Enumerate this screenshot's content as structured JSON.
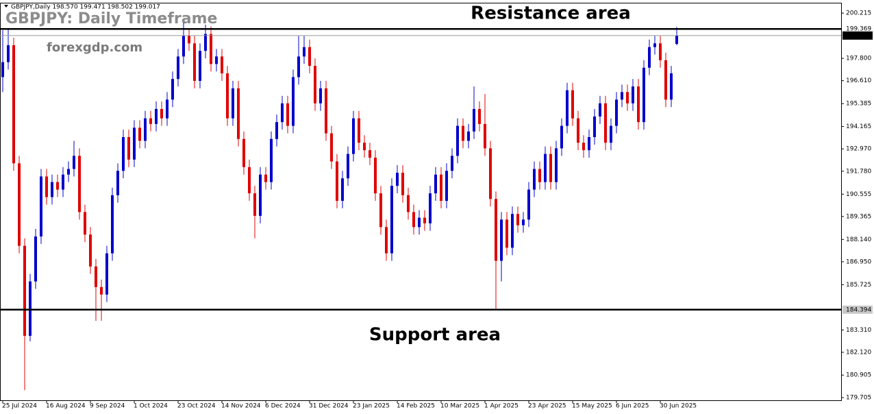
{
  "chart_data": {
    "type": "candlestick",
    "header": "GBPJPY,Daily  198.570 199.471 198.502 199.017",
    "title": "GBPJPY: Daily Timeframe",
    "subtitle": "forexgdp.com",
    "annotations": [
      "Resistance area",
      "Support area"
    ],
    "up_color": "#0000cc",
    "down_color": "#e00000",
    "ylim": [
      179.56,
      200.73
    ],
    "yticks": [
      200.215,
      {
        "value": 197.8,
        "label": "197.800"
      },
      {
        "value": 196.61,
        "label": "196.610"
      },
      195.385,
      194.165,
      {
        "value": 192.97,
        "label": "192.970"
      },
      {
        "value": 191.78,
        "label": "191.780"
      },
      190.555,
      189.365,
      {
        "value": 188.14,
        "label": "188.140"
      },
      {
        "value": 186.95,
        "label": "186.950"
      },
      185.725,
      {
        "value": 183.31,
        "label": "183.310"
      },
      {
        "value": 182.12,
        "label": "182.120"
      },
      180.905,
      179.705
    ],
    "levels": [
      199.369,
      199.017,
      184.394
    ],
    "xticks": [
      {
        "value": 0,
        "label": "25 Jul 2024"
      },
      {
        "value": 8,
        "label": "16 Aug 2024"
      },
      {
        "value": 16,
        "label": "9 Sep 2024"
      },
      {
        "value": 24,
        "label": "1 Oct 2024"
      },
      {
        "value": 32,
        "label": "23 Oct 2024"
      },
      {
        "value": 40,
        "label": "14 Nov 2024"
      },
      {
        "value": 48,
        "label": "6 Dec 2024"
      },
      {
        "value": 56,
        "label": "31 Dec 2024"
      },
      {
        "value": 64,
        "label": "23 Jan 2025"
      },
      {
        "value": 72,
        "label": "14 Feb 2025"
      },
      {
        "value": 80,
        "label": "10 Mar 2025"
      },
      {
        "value": 88,
        "label": "1 Apr 2025"
      },
      {
        "value": 96,
        "label": "23 Apr 2025"
      },
      {
        "value": 104,
        "label": "15 May 2025"
      },
      {
        "value": 112,
        "label": "6 Jun 2025"
      },
      {
        "value": 120,
        "label": "30 Jun 2025"
      }
    ],
    "candles": [
      [
        196.8,
        199.3,
        196.0,
        197.6
      ],
      [
        197.6,
        199.4,
        197.2,
        198.5
      ],
      [
        198.5,
        198.9,
        191.8,
        192.2
      ],
      [
        192.2,
        192.6,
        187.4,
        187.8
      ],
      [
        187.8,
        188.2,
        180.1,
        183.0
      ],
      [
        183.0,
        186.3,
        182.7,
        185.9
      ],
      [
        185.9,
        188.7,
        185.5,
        188.3
      ],
      [
        188.3,
        191.9,
        187.9,
        191.5
      ],
      [
        191.5,
        191.9,
        190.0,
        190.4
      ],
      [
        190.4,
        191.6,
        190.0,
        191.2
      ],
      [
        191.2,
        191.6,
        190.4,
        190.8
      ],
      [
        190.8,
        192.0,
        190.4,
        191.6
      ],
      [
        191.6,
        192.3,
        191.2,
        191.9
      ],
      [
        191.9,
        193.4,
        191.5,
        192.6
      ],
      [
        192.6,
        193.0,
        189.2,
        189.6
      ],
      [
        189.6,
        190.0,
        188.0,
        188.4
      ],
      [
        188.4,
        188.8,
        186.3,
        186.7
      ],
      [
        186.7,
        187.1,
        183.8,
        185.6
      ],
      [
        185.6,
        186.0,
        183.8,
        185.2
      ],
      [
        185.2,
        187.8,
        184.8,
        187.4
      ],
      [
        187.4,
        190.9,
        187.0,
        190.5
      ],
      [
        190.5,
        192.2,
        190.1,
        191.8
      ],
      [
        191.8,
        194.0,
        191.4,
        193.6
      ],
      [
        193.6,
        194.0,
        192.0,
        192.4
      ],
      [
        192.4,
        194.5,
        192.0,
        194.1
      ],
      [
        194.1,
        194.5,
        193.0,
        193.4
      ],
      [
        193.4,
        195.0,
        193.0,
        194.6
      ],
      [
        194.6,
        195.0,
        193.9,
        194.3
      ],
      [
        194.3,
        195.5,
        193.9,
        195.1
      ],
      [
        195.1,
        195.5,
        194.2,
        194.6
      ],
      [
        194.6,
        196.0,
        194.2,
        195.6
      ],
      [
        195.6,
        197.1,
        195.2,
        196.7
      ],
      [
        196.7,
        198.3,
        196.3,
        197.9
      ],
      [
        197.9,
        199.7,
        197.5,
        199.0
      ],
      [
        199.0,
        199.4,
        198.2,
        198.6
      ],
      [
        198.6,
        199.0,
        196.2,
        196.6
      ],
      [
        196.6,
        198.6,
        196.2,
        198.2
      ],
      [
        198.2,
        199.6,
        197.8,
        199.1
      ],
      [
        199.1,
        199.5,
        197.1,
        197.5
      ],
      [
        197.5,
        198.3,
        197.1,
        197.9
      ],
      [
        197.9,
        198.3,
        196.6,
        197.0
      ],
      [
        197.0,
        197.4,
        194.2,
        194.6
      ],
      [
        194.6,
        196.6,
        194.2,
        196.2
      ],
      [
        196.2,
        196.6,
        193.1,
        193.5
      ],
      [
        193.5,
        193.9,
        191.6,
        192.0
      ],
      [
        192.0,
        192.4,
        190.2,
        190.6
      ],
      [
        190.6,
        191.0,
        188.2,
        189.4
      ],
      [
        189.4,
        192.0,
        189.0,
        191.6
      ],
      [
        191.6,
        192.0,
        190.8,
        191.2
      ],
      [
        191.2,
        193.9,
        190.8,
        193.5
      ],
      [
        193.5,
        194.8,
        193.1,
        194.4
      ],
      [
        194.4,
        195.8,
        194.0,
        195.4
      ],
      [
        195.4,
        195.8,
        193.8,
        194.2
      ],
      [
        194.2,
        197.2,
        193.8,
        196.8
      ],
      [
        196.8,
        199.0,
        196.4,
        197.9
      ],
      [
        197.9,
        199.0,
        197.5,
        198.4
      ],
      [
        198.4,
        198.8,
        197.0,
        197.4
      ],
      [
        197.4,
        197.8,
        195.0,
        195.4
      ],
      [
        195.4,
        196.6,
        195.0,
        196.2
      ],
      [
        196.2,
        196.6,
        193.4,
        193.8
      ],
      [
        193.8,
        194.2,
        191.9,
        192.3
      ],
      [
        192.3,
        192.7,
        189.8,
        190.2
      ],
      [
        190.2,
        191.8,
        189.8,
        191.4
      ],
      [
        191.4,
        193.1,
        191.0,
        192.7
      ],
      [
        192.7,
        195.0,
        192.3,
        194.6
      ],
      [
        194.6,
        195.0,
        192.9,
        193.3
      ],
      [
        193.3,
        193.7,
        192.5,
        192.9
      ],
      [
        192.9,
        193.3,
        192.1,
        192.5
      ],
      [
        192.5,
        192.9,
        190.2,
        190.6
      ],
      [
        190.6,
        191.0,
        188.4,
        188.8
      ],
      [
        188.8,
        189.2,
        187.0,
        187.4
      ],
      [
        187.4,
        191.4,
        187.0,
        191.0
      ],
      [
        191.0,
        192.1,
        190.6,
        191.7
      ],
      [
        191.7,
        192.1,
        190.1,
        190.5
      ],
      [
        190.5,
        190.9,
        189.2,
        189.6
      ],
      [
        189.6,
        190.0,
        188.4,
        188.8
      ],
      [
        188.8,
        189.7,
        188.4,
        189.3
      ],
      [
        189.3,
        189.7,
        188.6,
        189.0
      ],
      [
        189.0,
        191.0,
        188.6,
        190.6
      ],
      [
        190.6,
        192.0,
        190.2,
        191.6
      ],
      [
        191.6,
        192.0,
        189.8,
        190.2
      ],
      [
        190.2,
        192.2,
        189.8,
        191.8
      ],
      [
        191.8,
        193.0,
        191.4,
        192.6
      ],
      [
        192.6,
        194.6,
        192.2,
        194.2
      ],
      [
        194.2,
        194.6,
        193.0,
        193.4
      ],
      [
        193.4,
        194.3,
        193.0,
        193.9
      ],
      [
        193.9,
        196.3,
        193.5,
        195.1
      ],
      [
        195.1,
        195.5,
        193.9,
        194.3
      ],
      [
        194.3,
        195.9,
        192.6,
        193.0
      ],
      [
        193.0,
        193.4,
        189.9,
        190.3
      ],
      [
        190.3,
        190.7,
        184.4,
        187.0
      ],
      [
        187.0,
        189.6,
        185.9,
        189.2
      ],
      [
        189.2,
        189.6,
        187.3,
        187.7
      ],
      [
        187.7,
        189.9,
        187.3,
        189.5
      ],
      [
        189.5,
        189.9,
        188.5,
        188.9
      ],
      [
        188.9,
        189.6,
        188.5,
        189.2
      ],
      [
        189.2,
        191.2,
        188.8,
        190.8
      ],
      [
        190.8,
        192.3,
        190.4,
        191.9
      ],
      [
        191.9,
        192.3,
        190.8,
        191.2
      ],
      [
        191.2,
        193.1,
        190.8,
        192.7
      ],
      [
        192.7,
        193.1,
        190.8,
        191.2
      ],
      [
        191.2,
        193.4,
        190.8,
        193.0
      ],
      [
        193.0,
        194.6,
        192.6,
        194.2
      ],
      [
        194.2,
        196.5,
        193.8,
        196.1
      ],
      [
        196.1,
        196.5,
        194.2,
        194.6
      ],
      [
        194.6,
        195.0,
        192.9,
        193.3
      ],
      [
        193.3,
        193.7,
        192.5,
        192.9
      ],
      [
        192.9,
        194.0,
        192.5,
        193.6
      ],
      [
        193.6,
        195.1,
        193.2,
        194.7
      ],
      [
        194.7,
        195.8,
        194.3,
        195.4
      ],
      [
        195.4,
        195.8,
        192.9,
        193.3
      ],
      [
        193.3,
        194.6,
        192.9,
        194.2
      ],
      [
        194.2,
        196.0,
        193.8,
        195.6
      ],
      [
        195.6,
        196.4,
        195.2,
        196.0
      ],
      [
        196.0,
        196.4,
        195.0,
        195.4
      ],
      [
        195.4,
        196.7,
        195.0,
        196.3
      ],
      [
        196.3,
        196.7,
        194.0,
        194.4
      ],
      [
        194.4,
        197.7,
        194.0,
        197.3
      ],
      [
        197.3,
        198.8,
        196.9,
        198.4
      ],
      [
        198.4,
        199.0,
        198.0,
        198.6
      ],
      [
        198.6,
        199.0,
        197.3,
        197.7
      ],
      [
        197.7,
        198.1,
        195.2,
        195.6
      ],
      [
        195.6,
        197.4,
        195.2,
        197.0
      ],
      [
        198.57,
        199.471,
        198.502,
        199.017
      ]
    ]
  }
}
